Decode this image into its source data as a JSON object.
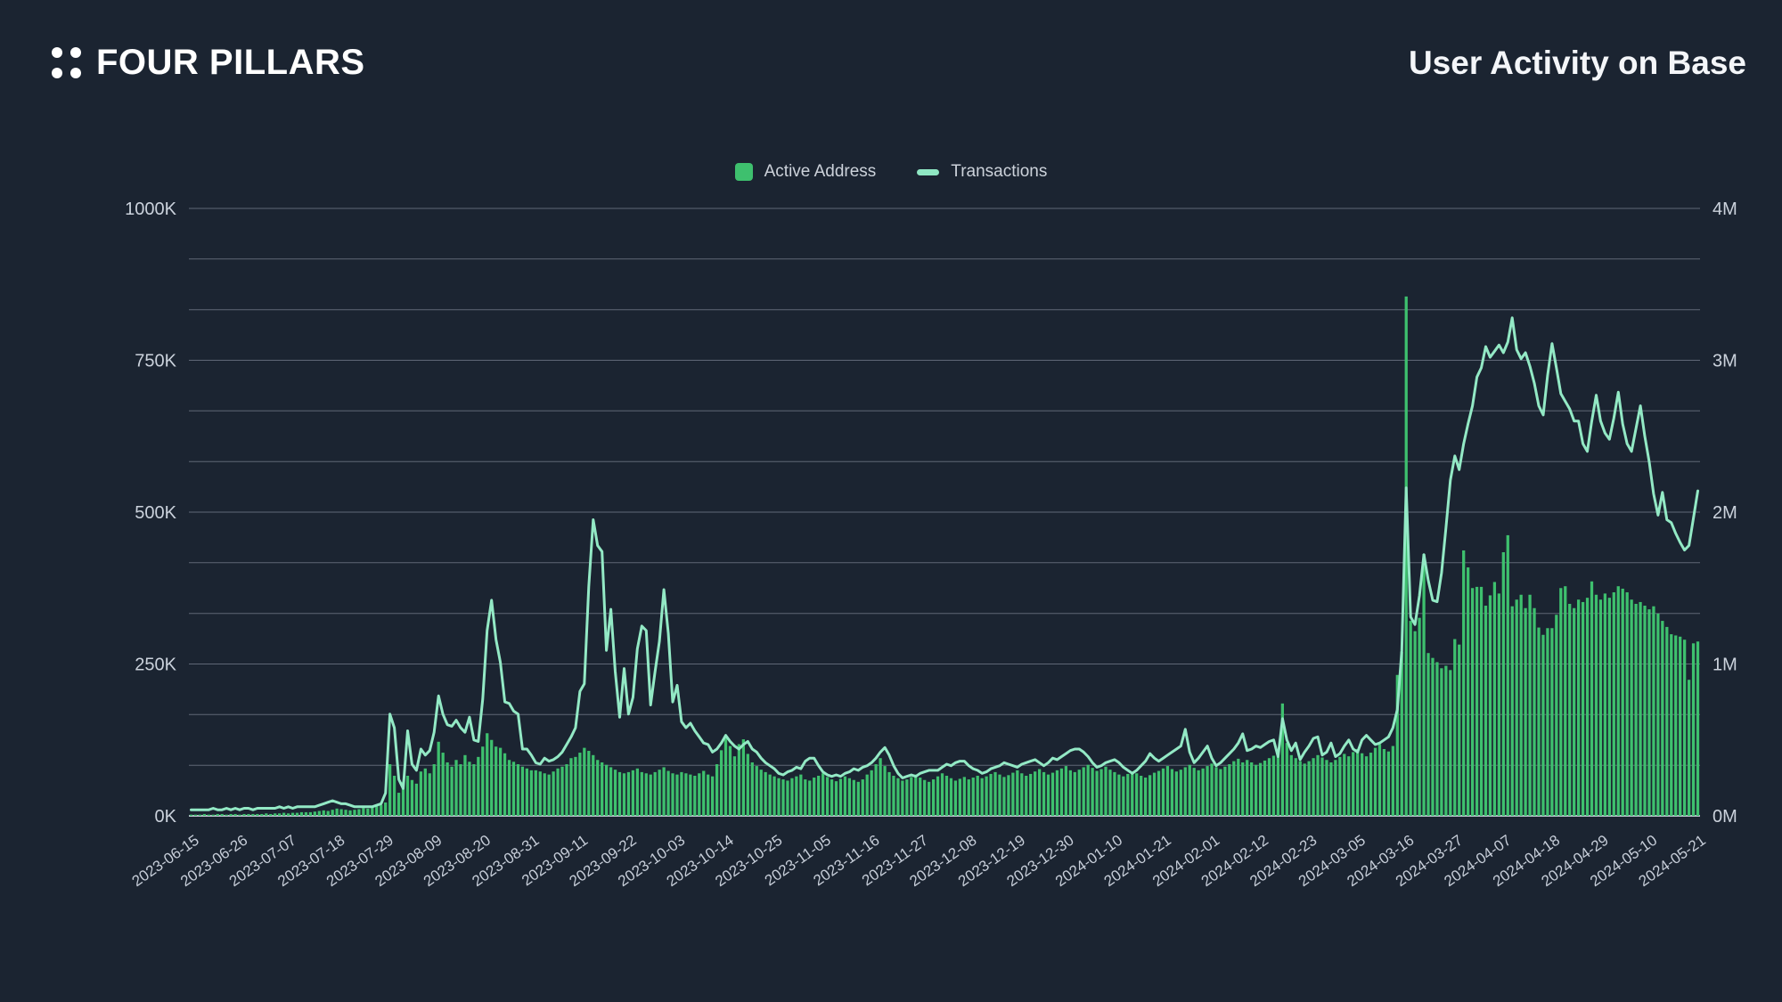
{
  "brand": {
    "name": "FOUR PILLARS"
  },
  "header": {
    "title": "User Activity on Base"
  },
  "legend": [
    {
      "label": "Active Address",
      "marker": "square",
      "color": "#3ec06e"
    },
    {
      "label": "Transactions",
      "marker": "dash",
      "color": "#8fe7c3"
    }
  ],
  "colors": {
    "background": "#1b2431",
    "bar": "#3ec06e",
    "line": "#93e9c5",
    "grid": "#8d95a4",
    "baseline": "#c2c9d4",
    "axis_label": "#cbd2dc",
    "title": "#f4f6f9"
  },
  "chart_data": {
    "type": "bar+line dual-axis time series",
    "title": "User Activity on Base",
    "interval": "daily",
    "start_date": "2023-06-15",
    "end_date": "2024-05-21",
    "legend_position": "top-center",
    "grid": true,
    "gridline_divisions": 12,
    "left_axis": {
      "label": "Active Address",
      "unit": "K",
      "max_k": 1000,
      "ticks": [
        "0K",
        "250K",
        "500K",
        "750K",
        "1000K"
      ]
    },
    "right_axis": {
      "label": "Transactions",
      "unit": "M",
      "max_m": 4,
      "ticks": [
        "0M",
        "1M",
        "2M",
        "3M",
        "4M"
      ]
    },
    "x_tick_labels": [
      "2023-06-15",
      "2023-06-26",
      "2023-07-07",
      "2023-07-18",
      "2023-07-29",
      "2023-08-09",
      "2023-08-20",
      "2023-08-31",
      "2023-09-11",
      "2023-09-22",
      "2023-10-03",
      "2023-10-14",
      "2023-10-25",
      "2023-11-05",
      "2023-11-16",
      "2023-11-27",
      "2023-12-08",
      "2023-12-19",
      "2023-12-30",
      "2024-01-10",
      "2024-01-21",
      "2024-02-01",
      "2024-02-12",
      "2024-02-23",
      "2024-03-05",
      "2024-03-16",
      "2024-03-27",
      "2024-04-07",
      "2024-04-18",
      "2024-04-29",
      "2024-05-10",
      "2024-05-21"
    ],
    "series": [
      {
        "name": "Active Address",
        "type": "bar",
        "axis": "left",
        "unit": "K",
        "color": "#3ec06e",
        "values": [
          2,
          2,
          2,
          3,
          2,
          2,
          3,
          3,
          2,
          3,
          3,
          2,
          3,
          3,
          3,
          3,
          3,
          4,
          3,
          4,
          4,
          5,
          4,
          5,
          5,
          6,
          6,
          6,
          7,
          8,
          9,
          8,
          10,
          12,
          11,
          10,
          9,
          10,
          11,
          13,
          12,
          14,
          16,
          18,
          22,
          85,
          66,
          38,
          56,
          66,
          59,
          53,
          73,
          78,
          70,
          85,
          122,
          104,
          88,
          81,
          92,
          85,
          100,
          89,
          85,
          97,
          114,
          136,
          125,
          114,
          112,
          103,
          92,
          89,
          85,
          81,
          78,
          75,
          75,
          73,
          70,
          68,
          73,
          78,
          81,
          85,
          95,
          97,
          104,
          112,
          107,
          100,
          92,
          88,
          84,
          80,
          76,
          72,
          70,
          72,
          75,
          78,
          72,
          70,
          68,
          72,
          76,
          80,
          74,
          70,
          68,
          72,
          70,
          68,
          66,
          70,
          74,
          68,
          65,
          85,
          108,
          132,
          115,
          98,
          118,
          126,
          102,
          88,
          82,
          76,
          72,
          68,
          65,
          62,
          60,
          58,
          62,
          65,
          68,
          60,
          58,
          63,
          66,
          70,
          64,
          60,
          57,
          61,
          65,
          62,
          59,
          56,
          60,
          68,
          75,
          85,
          95,
          82,
          72,
          66,
          62,
          58,
          60,
          64,
          68,
          63,
          59,
          56,
          60,
          65,
          70,
          66,
          62,
          58,
          61,
          64,
          60,
          63,
          66,
          62,
          65,
          69,
          72,
          68,
          64,
          67,
          71,
          75,
          70,
          66,
          69,
          73,
          77,
          72,
          68,
          71,
          75,
          78,
          82,
          75,
          72,
          76,
          80,
          84,
          79,
          74,
          77,
          81,
          76,
          72,
          68,
          65,
          69,
          73,
          70,
          66,
          63,
          67,
          71,
          74,
          78,
          82,
          77,
          73,
          76,
          80,
          84,
          79,
          75,
          78,
          82,
          86,
          80,
          77,
          81,
          85,
          90,
          94,
          88,
          92,
          88,
          84,
          87,
          91,
          95,
          99,
          103,
          185,
          120,
          100,
          95,
          90,
          86,
          90,
          95,
          100,
          96,
          92,
          88,
          92,
          97,
          102,
          98,
          105,
          110,
          103,
          98,
          104,
          112,
          118,
          110,
          106,
          115,
          232,
          270,
          855,
          321,
          304,
          326,
          431,
          268,
          260,
          253,
          243,
          247,
          240,
          291,
          282,
          437,
          409,
          375,
          377,
          377,
          346,
          363,
          385,
          366,
          434,
          462,
          345,
          356,
          364,
          342,
          364,
          342,
          310,
          298,
          309,
          309,
          331,
          375,
          378,
          349,
          342,
          356,
          352,
          359,
          386,
          364,
          356,
          366,
          359,
          368,
          378,
          374,
          368,
          356,
          349,
          352,
          346,
          340,
          345,
          333,
          321,
          311,
          299,
          297,
          295,
          290,
          224,
          284,
          287
        ]
      },
      {
        "name": "Transactions",
        "type": "line",
        "axis": "right",
        "unit": "M",
        "color": "#93e9c5",
        "values": [
          0.04,
          0.04,
          0.04,
          0.04,
          0.04,
          0.05,
          0.04,
          0.04,
          0.05,
          0.04,
          0.05,
          0.04,
          0.05,
          0.05,
          0.04,
          0.05,
          0.05,
          0.05,
          0.05,
          0.05,
          0.06,
          0.05,
          0.06,
          0.05,
          0.06,
          0.06,
          0.06,
          0.06,
          0.06,
          0.07,
          0.08,
          0.09,
          0.1,
          0.09,
          0.08,
          0.08,
          0.07,
          0.06,
          0.06,
          0.06,
          0.06,
          0.06,
          0.07,
          0.08,
          0.15,
          0.67,
          0.58,
          0.24,
          0.18,
          0.56,
          0.34,
          0.3,
          0.44,
          0.4,
          0.43,
          0.55,
          0.79,
          0.67,
          0.6,
          0.59,
          0.63,
          0.58,
          0.55,
          0.65,
          0.5,
          0.49,
          0.77,
          1.22,
          1.42,
          1.16,
          1.01,
          0.75,
          0.74,
          0.69,
          0.67,
          0.44,
          0.44,
          0.4,
          0.35,
          0.34,
          0.38,
          0.36,
          0.37,
          0.39,
          0.42,
          0.47,
          0.52,
          0.58,
          0.82,
          0.87,
          1.51,
          1.95,
          1.78,
          1.74,
          1.09,
          1.36,
          0.95,
          0.65,
          0.97,
          0.67,
          0.78,
          1.1,
          1.25,
          1.22,
          0.73,
          0.95,
          1.15,
          1.49,
          1.2,
          0.75,
          0.86,
          0.62,
          0.58,
          0.61,
          0.56,
          0.52,
          0.48,
          0.47,
          0.42,
          0.44,
          0.48,
          0.53,
          0.49,
          0.46,
          0.44,
          0.47,
          0.49,
          0.44,
          0.42,
          0.38,
          0.35,
          0.33,
          0.31,
          0.28,
          0.27,
          0.29,
          0.3,
          0.32,
          0.31,
          0.36,
          0.38,
          0.38,
          0.33,
          0.29,
          0.27,
          0.26,
          0.27,
          0.26,
          0.28,
          0.29,
          0.31,
          0.3,
          0.32,
          0.33,
          0.35,
          0.38,
          0.42,
          0.45,
          0.4,
          0.33,
          0.28,
          0.25,
          0.26,
          0.27,
          0.26,
          0.28,
          0.29,
          0.3,
          0.3,
          0.3,
          0.32,
          0.34,
          0.33,
          0.35,
          0.36,
          0.36,
          0.33,
          0.31,
          0.3,
          0.28,
          0.29,
          0.31,
          0.32,
          0.33,
          0.35,
          0.34,
          0.33,
          0.32,
          0.34,
          0.35,
          0.36,
          0.37,
          0.35,
          0.33,
          0.35,
          0.38,
          0.37,
          0.39,
          0.41,
          0.43,
          0.44,
          0.44,
          0.42,
          0.39,
          0.35,
          0.32,
          0.33,
          0.35,
          0.36,
          0.37,
          0.35,
          0.32,
          0.3,
          0.28,
          0.3,
          0.33,
          0.36,
          0.41,
          0.38,
          0.36,
          0.38,
          0.4,
          0.42,
          0.44,
          0.46,
          0.57,
          0.42,
          0.35,
          0.38,
          0.42,
          0.46,
          0.38,
          0.33,
          0.35,
          0.38,
          0.41,
          0.44,
          0.48,
          0.54,
          0.43,
          0.44,
          0.46,
          0.45,
          0.47,
          0.49,
          0.5,
          0.39,
          0.64,
          0.5,
          0.43,
          0.48,
          0.37,
          0.42,
          0.46,
          0.51,
          0.52,
          0.4,
          0.42,
          0.48,
          0.39,
          0.41,
          0.46,
          0.5,
          0.44,
          0.42,
          0.5,
          0.53,
          0.5,
          0.47,
          0.48,
          0.5,
          0.52,
          0.58,
          0.7,
          1.09,
          2.16,
          1.31,
          1.26,
          1.45,
          1.72,
          1.55,
          1.42,
          1.41,
          1.6,
          1.9,
          2.21,
          2.37,
          2.28,
          2.45,
          2.58,
          2.7,
          2.89,
          2.95,
          3.09,
          3.02,
          3.06,
          3.1,
          3.05,
          3.12,
          3.28,
          3.07,
          3.01,
          3.05,
          2.96,
          2.85,
          2.7,
          2.64,
          2.9,
          3.11,
          2.95,
          2.78,
          2.73,
          2.68,
          2.6,
          2.6,
          2.45,
          2.4,
          2.6,
          2.77,
          2.6,
          2.52,
          2.48,
          2.62,
          2.79,
          2.58,
          2.45,
          2.4,
          2.55,
          2.7,
          2.5,
          2.33,
          2.12,
          1.98,
          2.13,
          1.95,
          1.93,
          1.86,
          1.8,
          1.75,
          1.78,
          1.96,
          2.14
        ]
      }
    ]
  }
}
